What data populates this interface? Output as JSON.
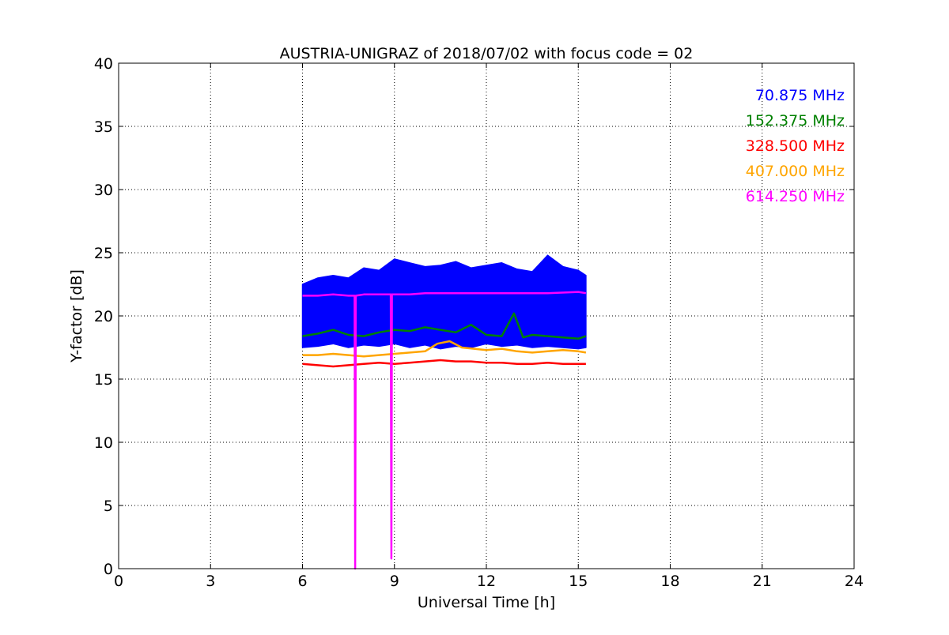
{
  "chart_data": {
    "type": "line",
    "title": "AUSTRIA-UNIGRAZ of 2018/07/02 with focus code = 02",
    "xlabel": "Universal Time [h]",
    "ylabel": "Y-factor [dB]",
    "xlim": [
      0,
      24
    ],
    "ylim": [
      0,
      40
    ],
    "xticks": [
      0,
      3,
      6,
      9,
      12,
      15,
      18,
      21,
      24
    ],
    "yticks": [
      0,
      5,
      10,
      15,
      20,
      25,
      30,
      35,
      40
    ],
    "grid": true,
    "legend_position": "top-right",
    "series": [
      {
        "name": "70.875 MHz",
        "color": "#0000ff",
        "x": [
          6.0,
          6.5,
          7.0,
          7.5,
          8.0,
          8.5,
          9.0,
          9.5,
          10.0,
          10.5,
          11.0,
          11.5,
          12.0,
          12.5,
          13.0,
          13.5,
          14.0,
          14.5,
          15.0,
          15.25
        ],
        "y_low": [
          17.5,
          17.6,
          17.8,
          17.5,
          17.7,
          17.6,
          17.8,
          17.5,
          17.7,
          17.4,
          17.6,
          17.5,
          17.8,
          17.6,
          17.7,
          17.5,
          17.6,
          17.5,
          17.4,
          17.5
        ],
        "y_high": [
          22.5,
          23.0,
          23.2,
          23.0,
          23.8,
          23.6,
          24.5,
          24.2,
          23.9,
          24.0,
          24.3,
          23.8,
          24.0,
          24.2,
          23.7,
          23.5,
          24.8,
          23.9,
          23.6,
          23.2
        ]
      },
      {
        "name": "152.375 MHz",
        "color": "#008000",
        "x": [
          6.0,
          6.5,
          7.0,
          7.5,
          8.0,
          8.5,
          9.0,
          9.5,
          10.0,
          10.5,
          11.0,
          11.5,
          12.0,
          12.5,
          12.9,
          13.2,
          13.5,
          14.0,
          14.5,
          15.0,
          15.25
        ],
        "y": [
          18.4,
          18.6,
          18.9,
          18.5,
          18.4,
          18.7,
          18.9,
          18.8,
          19.1,
          18.9,
          18.7,
          19.3,
          18.5,
          18.4,
          20.2,
          18.3,
          18.5,
          18.4,
          18.3,
          18.2,
          18.4
        ]
      },
      {
        "name": "328.500 MHz",
        "color": "#ff0000",
        "x": [
          6.0,
          6.5,
          7.0,
          7.5,
          8.0,
          8.5,
          9.0,
          9.5,
          10.0,
          10.5,
          11.0,
          11.5,
          12.0,
          12.5,
          13.0,
          13.5,
          14.0,
          14.5,
          15.0,
          15.25
        ],
        "y": [
          16.2,
          16.1,
          16.0,
          16.1,
          16.2,
          16.3,
          16.2,
          16.3,
          16.4,
          16.5,
          16.4,
          16.4,
          16.3,
          16.3,
          16.2,
          16.2,
          16.3,
          16.2,
          16.2,
          16.2
        ]
      },
      {
        "name": "407.000 MHz",
        "color": "#ffa500",
        "x": [
          6.0,
          6.5,
          7.0,
          7.5,
          8.0,
          8.5,
          9.0,
          9.5,
          10.0,
          10.4,
          10.8,
          11.2,
          11.6,
          12.0,
          12.5,
          13.0,
          13.5,
          14.0,
          14.5,
          15.0,
          15.25
        ],
        "y": [
          16.9,
          16.9,
          17.0,
          16.9,
          16.8,
          16.9,
          17.0,
          17.1,
          17.2,
          17.8,
          18.0,
          17.5,
          17.4,
          17.3,
          17.4,
          17.2,
          17.1,
          17.2,
          17.3,
          17.2,
          17.1
        ]
      },
      {
        "name": "614.250 MHz",
        "color": "#ff00ff",
        "x": [
          6.0,
          6.5,
          7.0,
          7.5,
          7.7,
          7.72,
          7.74,
          8.0,
          8.5,
          8.88,
          8.9,
          8.92,
          9.5,
          10.0,
          11.0,
          12.0,
          13.0,
          14.0,
          15.0,
          15.25
        ],
        "y": [
          21.6,
          21.6,
          21.7,
          21.6,
          21.6,
          0.0,
          21.6,
          21.7,
          21.7,
          21.7,
          0.8,
          21.7,
          21.7,
          21.8,
          21.8,
          21.8,
          21.8,
          21.8,
          21.9,
          21.8
        ]
      }
    ]
  }
}
